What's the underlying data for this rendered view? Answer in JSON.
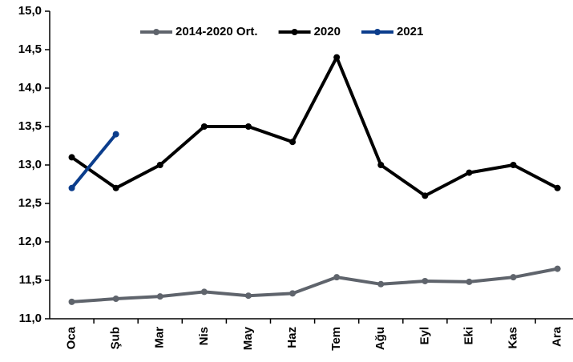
{
  "chart_data": {
    "type": "line",
    "categories": [
      "Oca",
      "Şub",
      "Mar",
      "Nis",
      "May",
      "Haz",
      "Tem",
      "Ağu",
      "Eyl",
      "Eki",
      "Kas",
      "Ara"
    ],
    "series": [
      {
        "name": "2014-2020 Ort.",
        "color": "#5f646c",
        "values": [
          11.22,
          11.26,
          11.29,
          11.35,
          11.3,
          11.33,
          11.54,
          11.45,
          11.49,
          11.48,
          11.54,
          11.65
        ]
      },
      {
        "name": "2020",
        "color": "#000000",
        "values": [
          13.1,
          12.7,
          13.0,
          13.5,
          13.5,
          13.3,
          14.4,
          13.0,
          12.6,
          12.9,
          13.0,
          12.7
        ]
      },
      {
        "name": "2021",
        "color": "#0b3d8c",
        "values": [
          12.7,
          13.4,
          null,
          null,
          null,
          null,
          null,
          null,
          null,
          null,
          null,
          null
        ]
      }
    ],
    "ylim": [
      11.0,
      15.0
    ],
    "yticks": [
      {
        "value": 11.0,
        "label": "11,0"
      },
      {
        "value": 11.5,
        "label": "11,5"
      },
      {
        "value": 12.0,
        "label": "12,0"
      },
      {
        "value": 12.5,
        "label": "12,5"
      },
      {
        "value": 13.0,
        "label": "13,0"
      },
      {
        "value": 13.5,
        "label": "13,5"
      },
      {
        "value": 14.0,
        "label": "14,0"
      },
      {
        "value": 14.5,
        "label": "14,5"
      },
      {
        "value": 15.0,
        "label": "15,0"
      }
    ],
    "legend": "top",
    "grid": false
  }
}
